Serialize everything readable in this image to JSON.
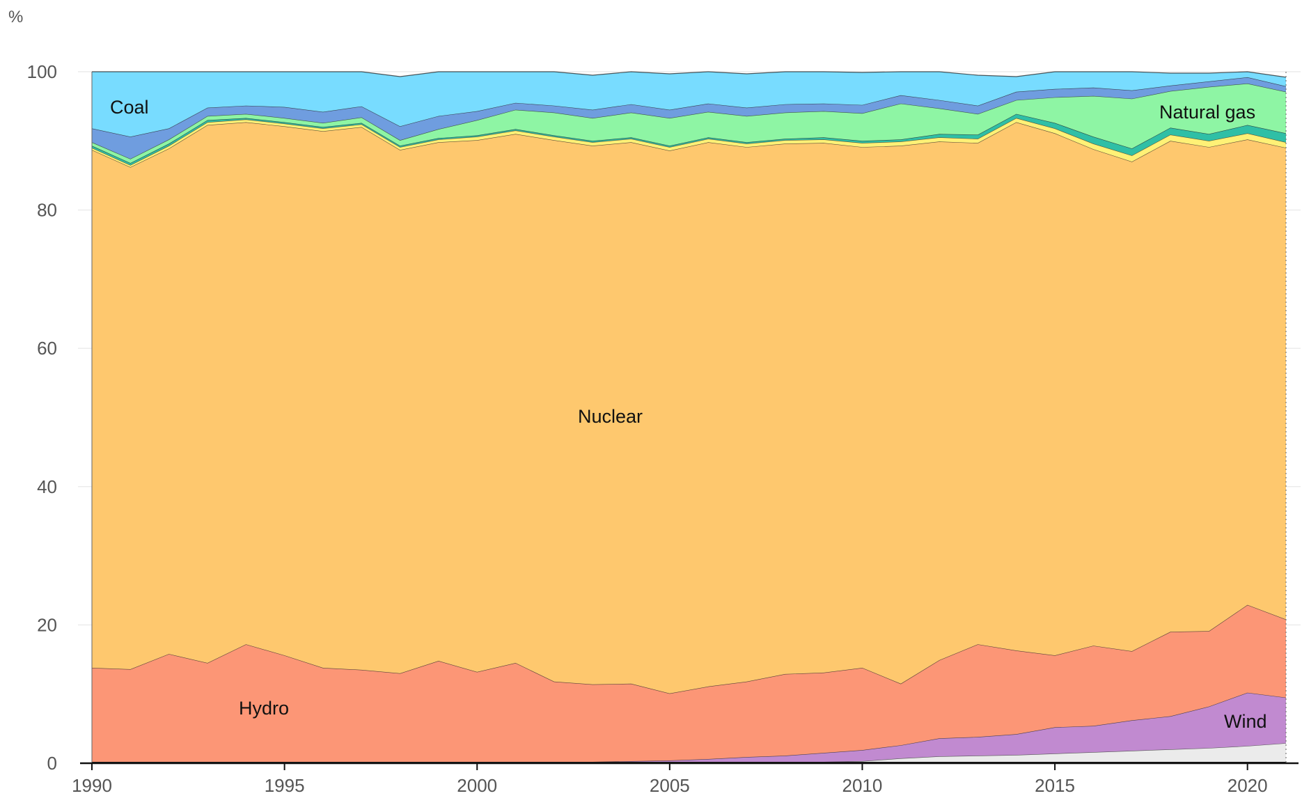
{
  "chart_data": {
    "type": "area",
    "stacked": true,
    "ylabel": "%",
    "ylim": [
      0,
      100
    ],
    "yticks": [
      0,
      20,
      40,
      60,
      80,
      100
    ],
    "xlim": [
      1990,
      2021
    ],
    "xticks": [
      1990,
      1995,
      2000,
      2005,
      2010,
      2015,
      2020
    ],
    "grid": true,
    "x": [
      1990,
      1991,
      1992,
      1993,
      1994,
      1995,
      1996,
      1997,
      1998,
      1999,
      2000,
      2001,
      2002,
      2003,
      2004,
      2005,
      2006,
      2007,
      2008,
      2009,
      2010,
      2011,
      2012,
      2013,
      2014,
      2015,
      2016,
      2017,
      2018,
      2019,
      2020,
      2021
    ],
    "series": [
      {
        "name": "",
        "color": "#1a1a1a",
        "values": [
          0.2,
          0.2,
          0.2,
          0.2,
          0.2,
          0.2,
          0.2,
          0.2,
          0.2,
          0.2,
          0.2,
          0.2,
          0.2,
          0.2,
          0.2,
          0.2,
          0.2,
          0.2,
          0.2,
          0.2,
          0.2,
          0.2,
          0.2,
          0.2,
          0.2,
          0.2,
          0.2,
          0.2,
          0.2,
          0.2,
          0.2,
          0.2
        ]
      },
      {
        "name": "",
        "color": "#ebebeb",
        "values": [
          0,
          0,
          0,
          0,
          0,
          0,
          0,
          0,
          0,
          0,
          0,
          0,
          0,
          0,
          0,
          0,
          0,
          0,
          0,
          0,
          0.1,
          0.5,
          0.8,
          0.9,
          1.0,
          1.2,
          1.4,
          1.6,
          1.8,
          2.0,
          2.3,
          2.7
        ]
      },
      {
        "name": "Wind",
        "color": "#c18ad0",
        "values": [
          0,
          0,
          0,
          0,
          0,
          0,
          0,
          0,
          0,
          0,
          0,
          0,
          0,
          0,
          0.1,
          0.2,
          0.4,
          0.7,
          0.9,
          1.3,
          1.6,
          1.9,
          2.6,
          2.7,
          3.0,
          3.8,
          3.8,
          4.4,
          4.8,
          6.0,
          7.7,
          6.6
        ]
      },
      {
        "name": "Hydro",
        "color": "#fc9676",
        "values": [
          13.6,
          13.4,
          15.6,
          14.3,
          17.0,
          15.4,
          13.6,
          13.3,
          12.8,
          14.6,
          13.0,
          14.3,
          11.6,
          11.2,
          11.2,
          9.7,
          10.5,
          10.9,
          11.8,
          11.6,
          11.9,
          8.9,
          11.3,
          13.4,
          12.1,
          10.4,
          11.6,
          10.0,
          12.2,
          10.9,
          12.7,
          11.3
        ]
      },
      {
        "name": "Nuclear",
        "color": "#fec86e",
        "values": [
          74.9,
          72.6,
          73.1,
          77.8,
          75.5,
          76.5,
          77.6,
          78.5,
          75.7,
          75.0,
          76.9,
          76.5,
          78.3,
          77.9,
          78.3,
          78.5,
          78.7,
          77.3,
          76.7,
          76.6,
          75.3,
          77.8,
          75.0,
          72.5,
          76.4,
          75.5,
          71.8,
          70.8,
          71.0,
          70.0,
          67.3,
          68.2
        ]
      },
      {
        "name": "",
        "color": "#fff176",
        "values": [
          0.3,
          0.3,
          0.4,
          0.4,
          0.4,
          0.4,
          0.4,
          0.4,
          0.4,
          0.4,
          0.5,
          0.5,
          0.5,
          0.5,
          0.5,
          0.5,
          0.5,
          0.5,
          0.5,
          0.5,
          0.6,
          0.6,
          0.6,
          0.6,
          0.6,
          0.7,
          0.8,
          0.9,
          0.9,
          0.9,
          0.9,
          0.8
        ]
      },
      {
        "name": "",
        "color": "#2fbfa6",
        "values": [
          0.3,
          0.3,
          0.3,
          0.3,
          0.2,
          0.2,
          0.2,
          0.2,
          0.2,
          0.2,
          0.2,
          0.2,
          0.2,
          0.2,
          0.2,
          0.2,
          0.2,
          0.2,
          0.2,
          0.3,
          0.3,
          0.3,
          0.5,
          0.6,
          0.6,
          0.8,
          1.0,
          1.0,
          1.0,
          1.0,
          1.2,
          1.3
        ]
      },
      {
        "name": "Natural gas",
        "color": "#8ef5a4",
        "values": [
          0.5,
          0.6,
          0.6,
          0.6,
          0.6,
          0.6,
          0.6,
          0.8,
          0.8,
          1.3,
          2.2,
          2.8,
          3.3,
          3.3,
          3.6,
          4.0,
          3.7,
          3.8,
          3.8,
          3.8,
          4.0,
          5.2,
          3.7,
          3.0,
          2.0,
          3.7,
          5.9,
          7.2,
          5.3,
          6.8,
          6.0,
          6.0
        ]
      },
      {
        "name": "",
        "color": "#6f9ddf",
        "values": [
          2.0,
          3.2,
          1.6,
          1.2,
          1.2,
          1.6,
          1.6,
          1.6,
          2.0,
          1.9,
          1.3,
          1.0,
          1.0,
          1.2,
          1.2,
          1.2,
          1.2,
          1.2,
          1.2,
          1.1,
          1.2,
          1.2,
          1.2,
          1.2,
          1.2,
          1.2,
          1.2,
          1.2,
          0.8,
          0.8,
          0.9,
          0.8
        ]
      },
      {
        "name": "Coal",
        "color": "#78dcff",
        "values": [
          8.2,
          9.4,
          8.2,
          5.2,
          4.9,
          5.1,
          5.8,
          5.0,
          7.2,
          6.4,
          5.7,
          4.5,
          4.9,
          5.0,
          4.7,
          5.2,
          4.6,
          4.9,
          4.7,
          4.6,
          4.7,
          3.6,
          4.1,
          4.4,
          2.2,
          2.5,
          2.3,
          2.7,
          1.8,
          1.2,
          1.0,
          1.3
        ]
      }
    ]
  }
}
